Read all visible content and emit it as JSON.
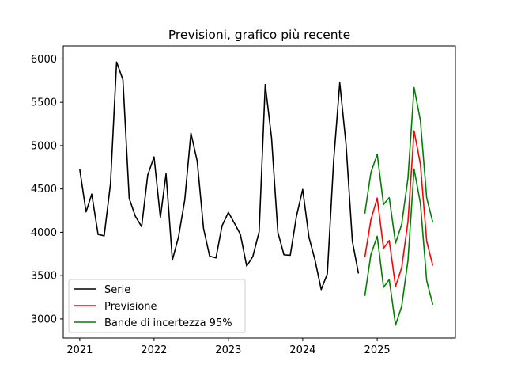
{
  "chart_data": {
    "type": "line",
    "title": "Previsioni, grafico più recente",
    "xlabel": "",
    "ylabel": "",
    "x_ticks": [
      "2021",
      "2022",
      "2023",
      "2024",
      "2025"
    ],
    "y_ticks": [
      3000,
      3500,
      4000,
      4500,
      5000,
      5500,
      6000
    ],
    "xlim": [
      "2020-10-12",
      "2026-01-20"
    ],
    "ylim": [
      2780,
      6150
    ],
    "grid": false,
    "legend_position": "lower-left",
    "series": [
      {
        "name": "Serie",
        "color": "#000000",
        "x": [
          "2021-01-01",
          "2021-02-01",
          "2021-03-01",
          "2021-04-01",
          "2021-05-01",
          "2021-06-01",
          "2021-07-01",
          "2021-08-01",
          "2021-09-01",
          "2021-10-01",
          "2021-11-01",
          "2021-12-01",
          "2022-01-01",
          "2022-02-01",
          "2022-03-01",
          "2022-04-01",
          "2022-05-01",
          "2022-06-01",
          "2022-07-01",
          "2022-08-01",
          "2022-09-01",
          "2022-10-01",
          "2022-11-01",
          "2022-12-01",
          "2023-01-01",
          "2023-02-01",
          "2023-03-01",
          "2023-04-01",
          "2023-05-01",
          "2023-06-01",
          "2023-07-01",
          "2023-08-01",
          "2023-09-01",
          "2023-10-01",
          "2023-11-01",
          "2023-12-01",
          "2024-01-01",
          "2024-02-01",
          "2024-03-01",
          "2024-04-01",
          "2024-05-01",
          "2024-06-01",
          "2024-07-01",
          "2024-08-01",
          "2024-09-01",
          "2024-10-01"
        ],
        "y": [
          4725,
          4235,
          4440,
          3975,
          3960,
          4560,
          5965,
          5760,
          4390,
          4185,
          4065,
          4660,
          4870,
          4170,
          4675,
          3680,
          3945,
          4375,
          5145,
          4820,
          4045,
          3725,
          3705,
          4075,
          4230,
          4100,
          3975,
          3610,
          3720,
          4005,
          5705,
          5090,
          4000,
          3740,
          3735,
          4180,
          4495,
          3940,
          3685,
          3340,
          3520,
          4825,
          5725,
          5010,
          3895,
          3525
        ]
      },
      {
        "name": "Previsione",
        "color": "#ff0000",
        "x": [
          "2024-11-01",
          "2024-12-01",
          "2025-01-01",
          "2025-02-01",
          "2025-03-01",
          "2025-04-01",
          "2025-05-01",
          "2025-06-01",
          "2025-07-01",
          "2025-08-01",
          "2025-09-01",
          "2025-10-01"
        ],
        "y": [
          3710,
          4145,
          4395,
          3815,
          3905,
          3375,
          3590,
          4125,
          5170,
          4785,
          3895,
          3615
        ]
      },
      {
        "name": "Bande di incertezza 95%",
        "color": "#008000",
        "x": [
          "2024-11-01",
          "2024-12-01",
          "2025-01-01",
          "2025-02-01",
          "2025-03-01",
          "2025-04-01",
          "2025-05-01",
          "2025-06-01",
          "2025-07-01",
          "2025-08-01",
          "2025-09-01",
          "2025-10-01"
        ],
        "y": [
          4215,
          4690,
          4900,
          4320,
          4400,
          3875,
          4090,
          4625,
          5670,
          5290,
          4395,
          4115
        ]
      },
      {
        "name": "",
        "color": "#008000",
        "x": [
          "2024-11-01",
          "2024-12-01",
          "2025-01-01",
          "2025-02-01",
          "2025-03-01",
          "2025-04-01",
          "2025-05-01",
          "2025-06-01",
          "2025-07-01",
          "2025-08-01",
          "2025-09-01",
          "2025-10-01"
        ],
        "y": [
          3265,
          3745,
          3955,
          3365,
          3455,
          2930,
          3145,
          3675,
          4730,
          4335,
          3440,
          3165
        ]
      }
    ],
    "legend": [
      "Serie",
      "Previsione",
      "Bande di incertezza 95%"
    ]
  }
}
